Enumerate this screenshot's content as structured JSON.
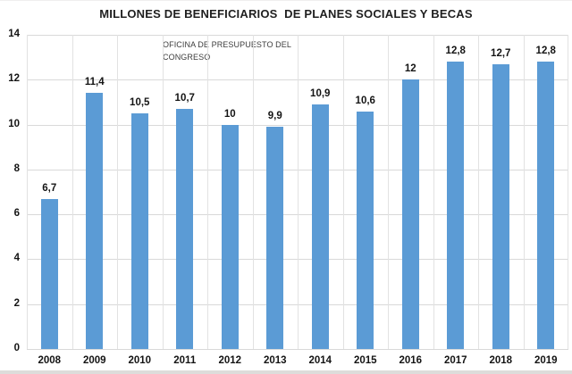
{
  "chart": {
    "title": "MILLONES DE BENEFICIARIOS  DE PLANES SOCIALES Y BECAS",
    "annotation": "OFICINA DE PRESUPUESTO DEL CONGRESO",
    "colors": {
      "bar": "#5b9bd5",
      "gridline": "#d9d9d9",
      "text": "#141414",
      "annotation_text": "#3d3d3d"
    }
  },
  "chart_data": {
    "type": "bar",
    "title": "MILLONES DE BENEFICIARIOS  DE PLANES SOCIALES Y BECAS",
    "categories": [
      "2008",
      "2009",
      "2010",
      "2011",
      "2012",
      "2013",
      "2014",
      "2015",
      "2016",
      "2017",
      "2018",
      "2019"
    ],
    "values": [
      6.7,
      11.4,
      10.5,
      10.7,
      10,
      9.9,
      10.9,
      10.6,
      12,
      12.8,
      12.7,
      12.8
    ],
    "value_labels": [
      "6,7",
      "11,4",
      "10,5",
      "10,7",
      "10",
      "9,9",
      "10,9",
      "10,6",
      "12",
      "12,8",
      "12,7",
      "12,8"
    ],
    "xlabel": "",
    "ylabel": "",
    "ylim": [
      0,
      14
    ],
    "yticks": [
      0,
      2,
      4,
      6,
      8,
      10,
      12,
      14
    ],
    "grid": true,
    "legend": false,
    "annotation": "OFICINA DE PRESUPUESTO DEL CONGRESO",
    "bar_color": "#5b9bd5"
  }
}
